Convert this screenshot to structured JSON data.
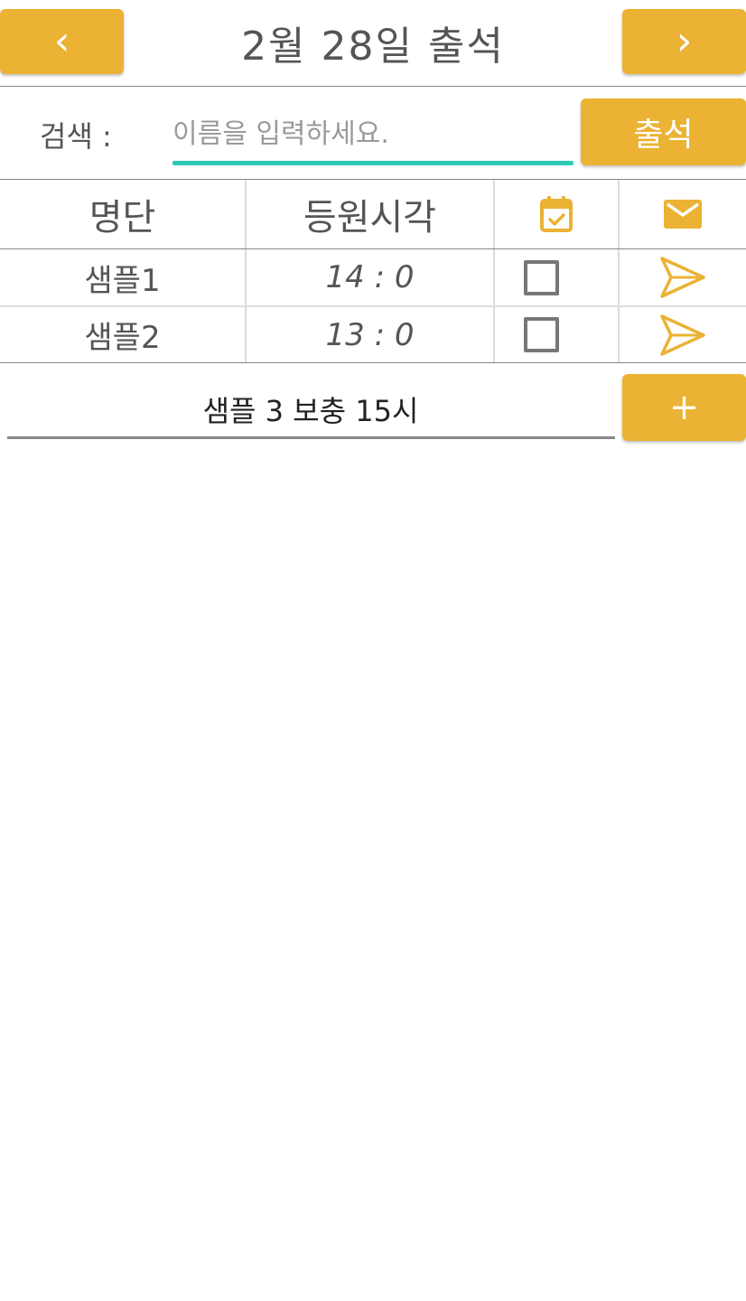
{
  "header": {
    "prev_icon": "chevron-left-icon",
    "prev_glyph": "‹",
    "title": "2월 28일 출석",
    "next_icon": "chevron-right-icon",
    "next_glyph": "›"
  },
  "search": {
    "label": "검색 :",
    "placeholder": "이름을 입력하세요.",
    "value": "",
    "submit_label": "출석"
  },
  "table": {
    "columns": [
      "명단",
      "등원시각",
      "calendar-check-icon",
      "mail-icon"
    ],
    "rows": [
      {
        "name": "샘플1",
        "time": "14 : 0",
        "checked": false
      },
      {
        "name": "샘플2",
        "time": "13 : 0",
        "checked": false
      }
    ]
  },
  "note": {
    "value": "샘플 3  보충 15시",
    "add_label": "+"
  },
  "colors": {
    "accent": "#ebb233",
    "focus_underline": "#2ec9b4",
    "text": "#555555"
  }
}
